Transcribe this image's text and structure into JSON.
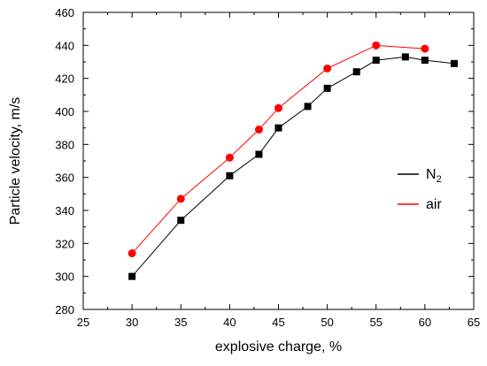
{
  "chart_data": {
    "type": "line",
    "xlabel": "explosive charge, %",
    "ylabel": "Particle velocity, m/s",
    "xlim": [
      25,
      65
    ],
    "ylim": [
      280,
      460
    ],
    "xticks": [
      25,
      30,
      35,
      40,
      45,
      50,
      55,
      60,
      65
    ],
    "yticks": [
      280,
      300,
      320,
      340,
      360,
      380,
      400,
      420,
      440,
      460
    ],
    "grid": false,
    "legend_position": "right",
    "series": [
      {
        "name": "N",
        "name_subscript": "2",
        "color": "#000000",
        "marker": "square",
        "x": [
          30,
          35,
          40,
          43,
          45,
          48,
          50,
          53,
          55,
          58,
          60,
          63
        ],
        "y": [
          300,
          334,
          361,
          374,
          390,
          403,
          414,
          424,
          431,
          433,
          431,
          429
        ]
      },
      {
        "name": "air",
        "color": "#ff0000",
        "marker": "circle",
        "x": [
          30,
          35,
          40,
          43,
          45,
          50,
          55,
          60
        ],
        "y": [
          314,
          347,
          372,
          389,
          402,
          426,
          440,
          438
        ]
      }
    ]
  }
}
